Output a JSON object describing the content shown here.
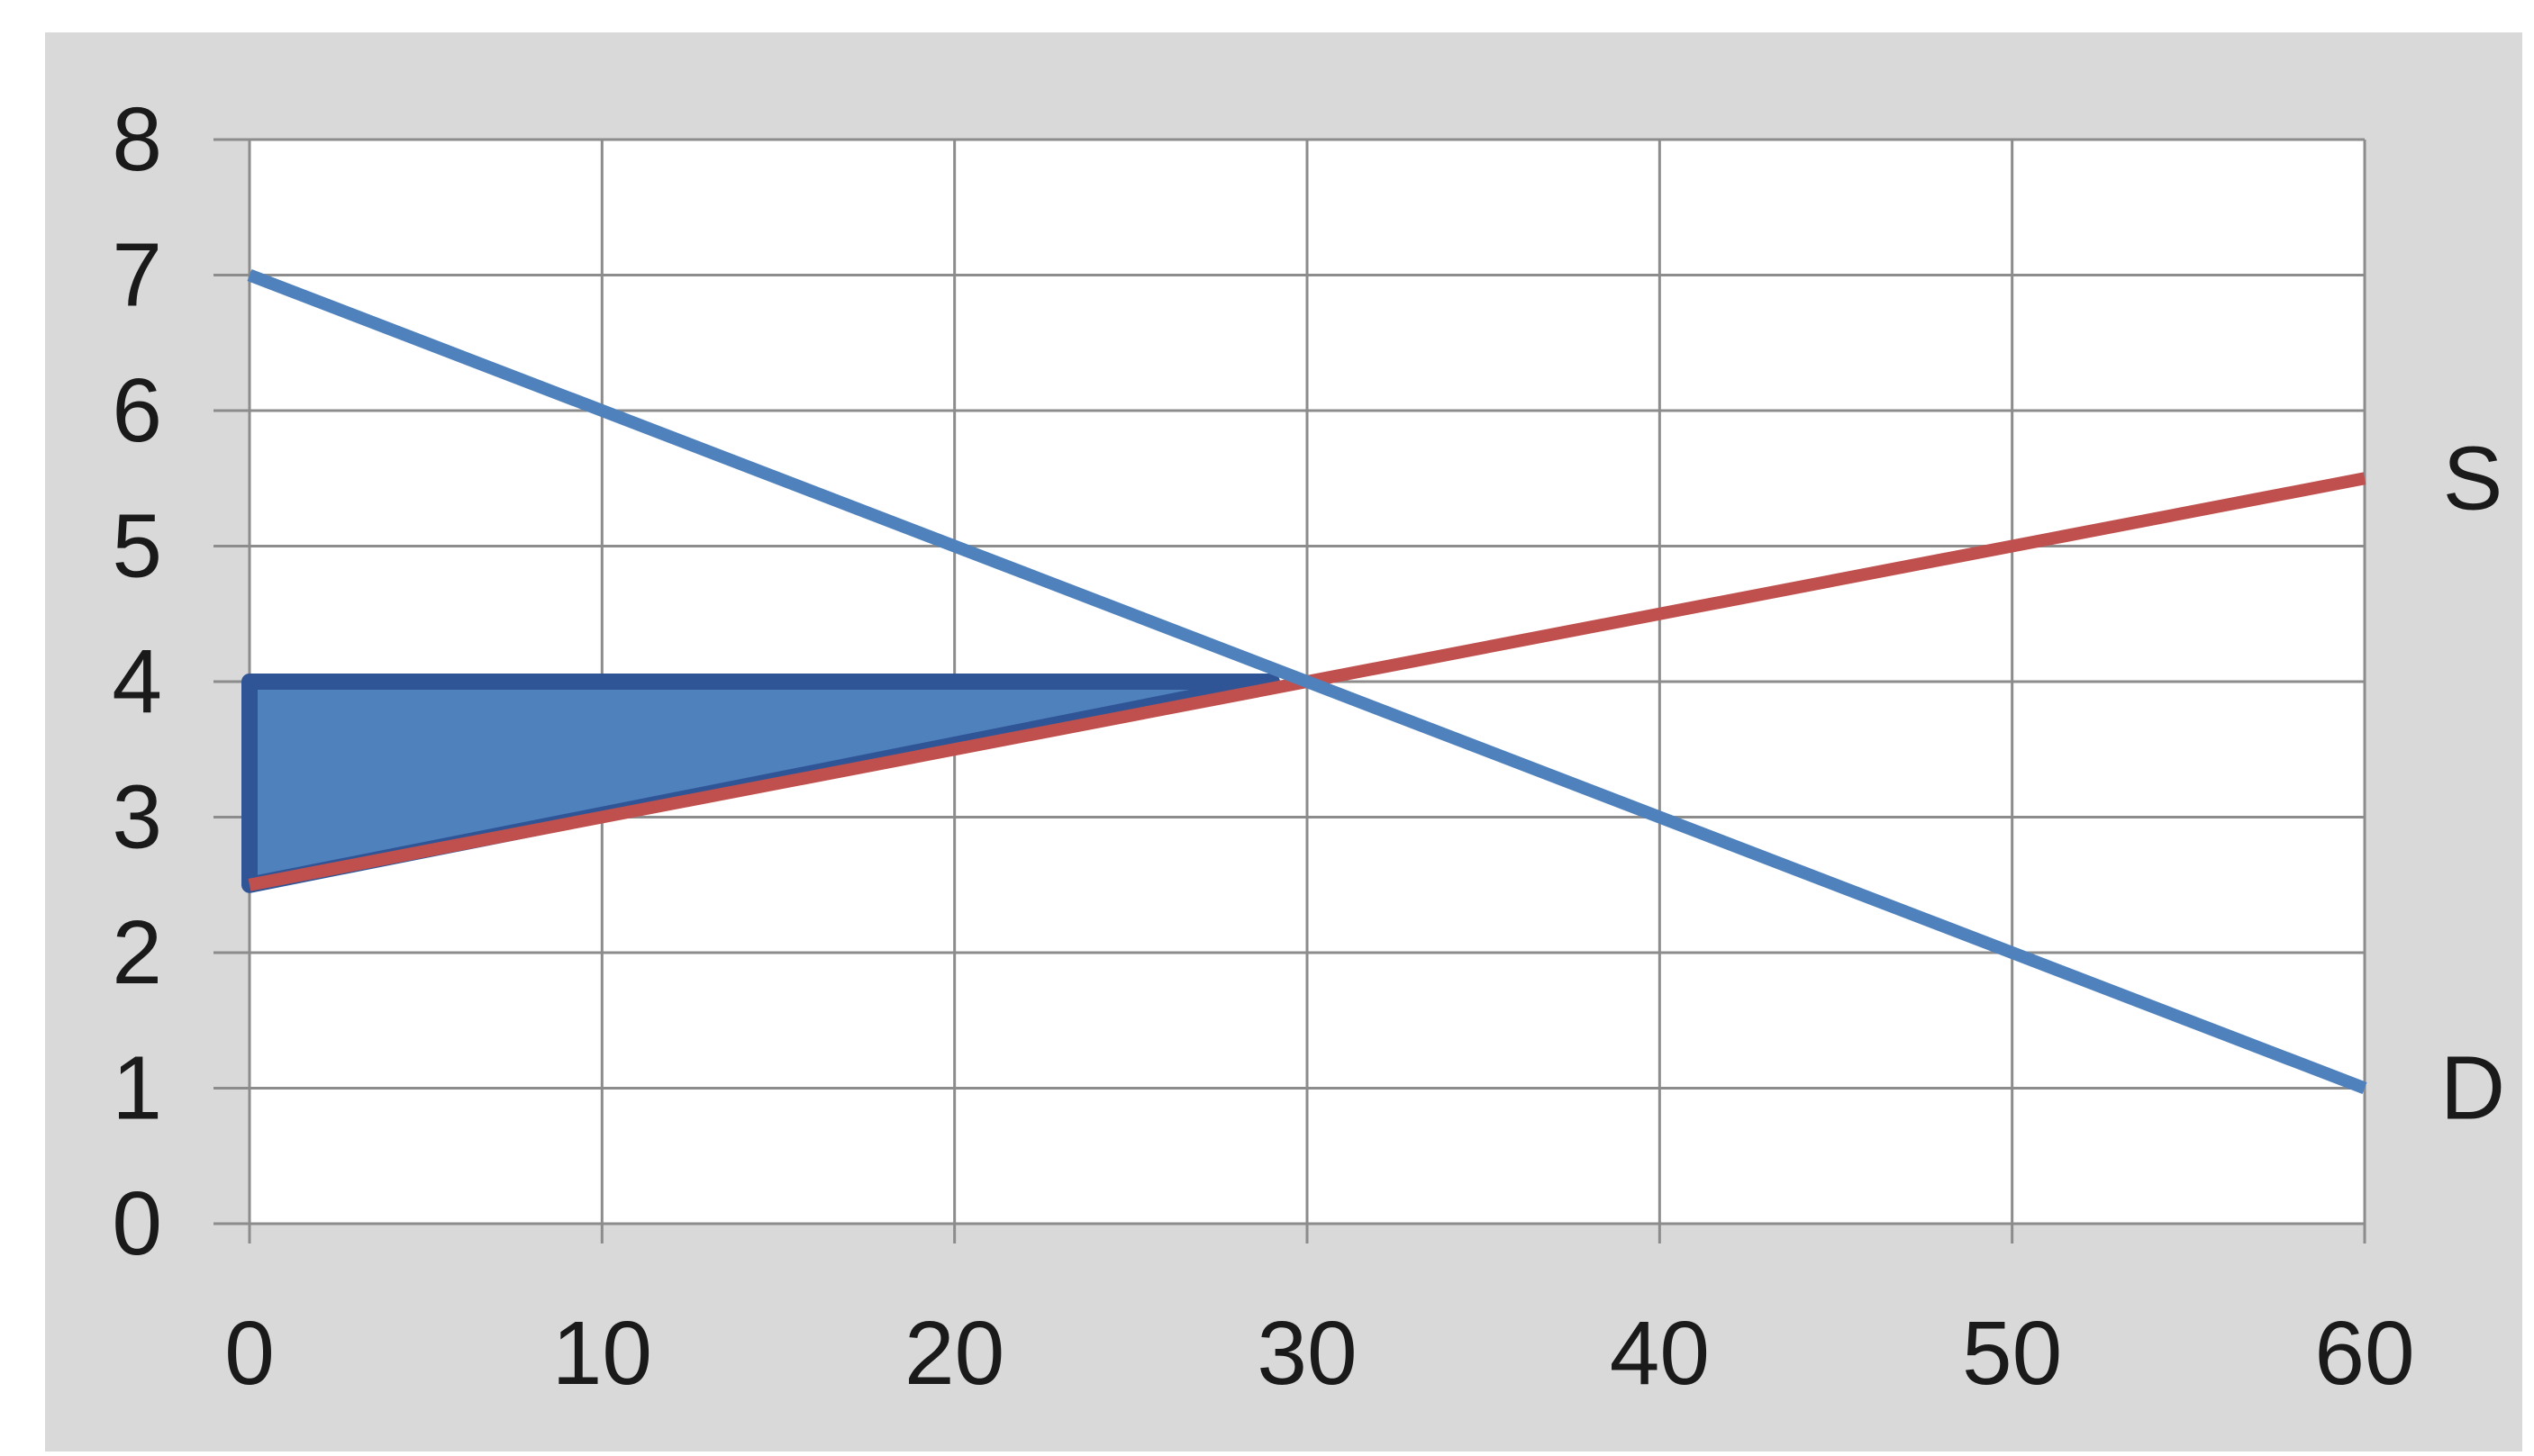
{
  "chart_data": {
    "type": "line",
    "title": "",
    "xlabel": "",
    "ylabel": "",
    "xlim": [
      0,
      60
    ],
    "ylim": [
      0,
      8
    ],
    "x_ticks": [
      0,
      10,
      20,
      30,
      40,
      50,
      60
    ],
    "y_ticks": [
      0,
      1,
      2,
      3,
      4,
      5,
      6,
      7,
      8
    ],
    "grid": true,
    "series": [
      {
        "name": "S",
        "color": "#c0504d",
        "points": [
          [
            0,
            2.5
          ],
          [
            60,
            5.5
          ]
        ]
      },
      {
        "name": "D",
        "color": "#4f81bd",
        "points": [
          [
            0,
            7
          ],
          [
            60,
            1
          ]
        ]
      }
    ],
    "shaded_region": {
      "color": "#4f81bd",
      "stroke": "#2f5597",
      "points": [
        [
          0,
          4
        ],
        [
          29,
          4
        ],
        [
          0,
          2.5
        ]
      ]
    },
    "colors": {
      "panel_background": "#d9d9d9",
      "plot_background": "#ffffff",
      "grid": "#8c8c8c"
    }
  }
}
